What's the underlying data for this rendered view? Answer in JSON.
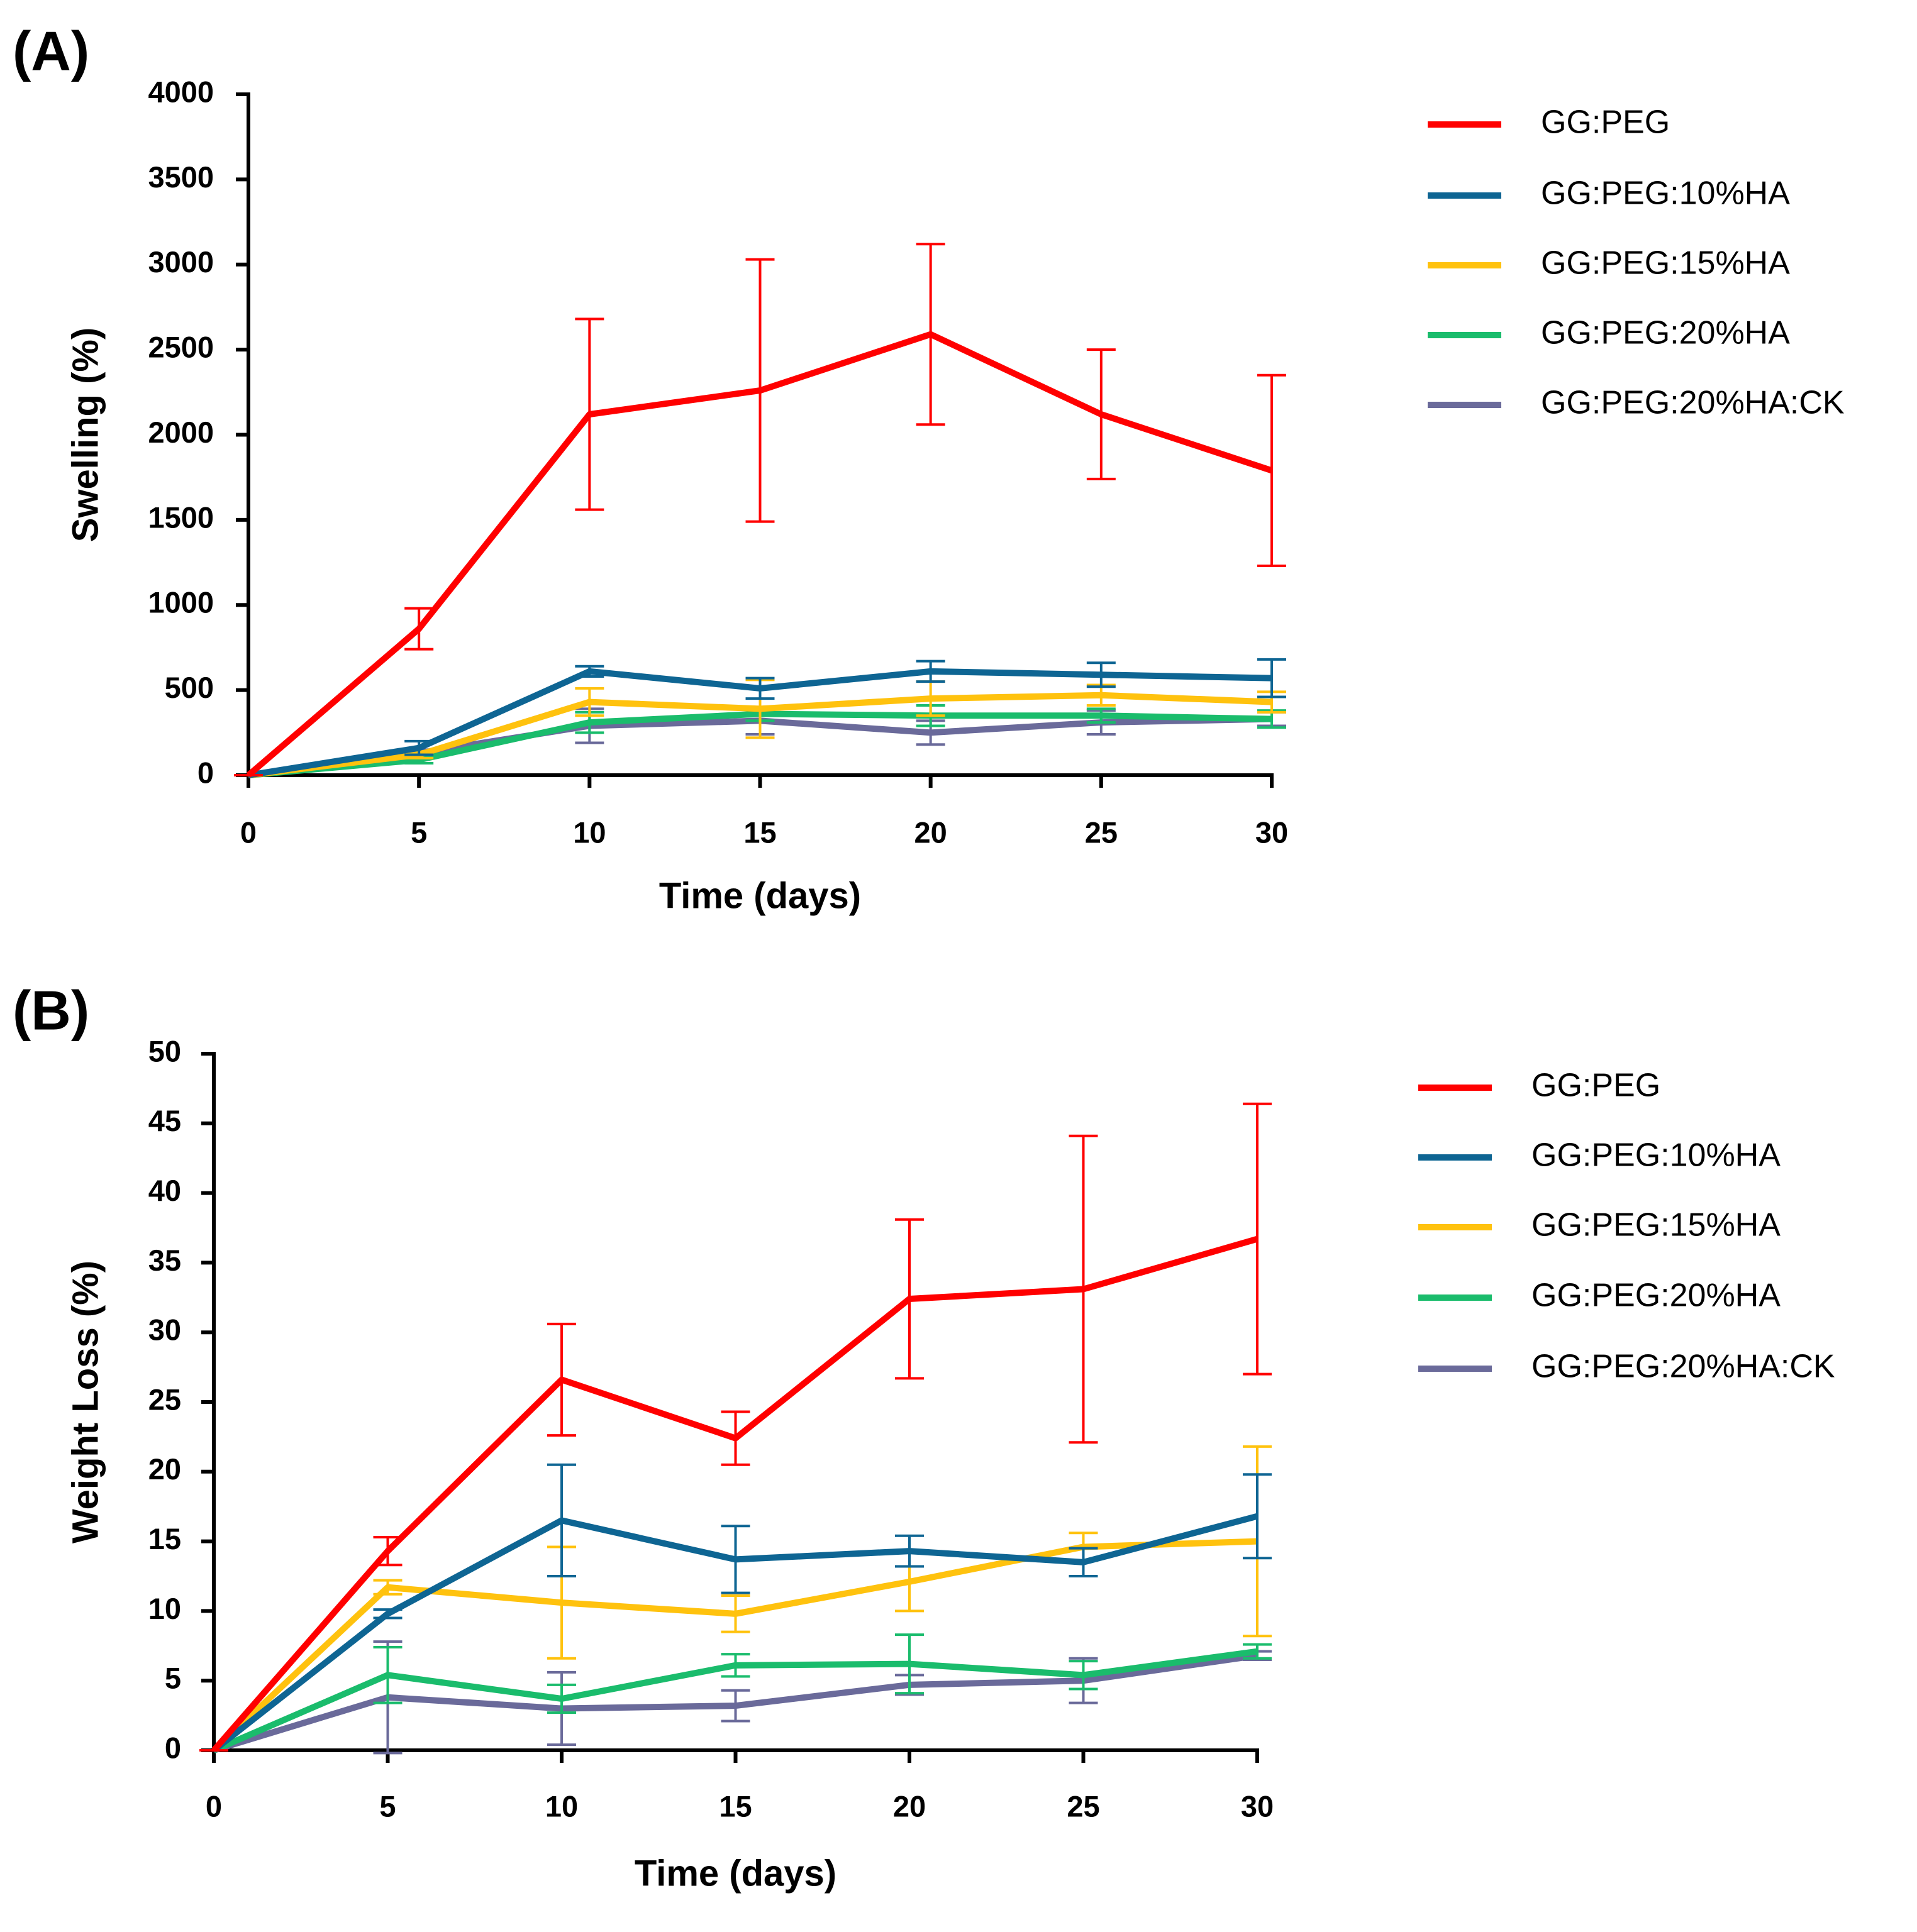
{
  "chart_data": [
    {
      "type": "line",
      "label": "(A)",
      "xlabel": "Time (days)",
      "ylabel": "Swelling (%)",
      "x": [
        0,
        5,
        10,
        15,
        20,
        25,
        30
      ],
      "xlim": [
        0,
        30
      ],
      "xticks": [
        0,
        5,
        10,
        15,
        20,
        25,
        30
      ],
      "ylim": [
        0,
        4000
      ],
      "yticks": [
        0,
        500,
        1000,
        1500,
        2000,
        2500,
        3000,
        3500,
        4000
      ],
      "series": [
        {
          "name": "GG:PEG",
          "color": "#ff0000",
          "values": [
            0,
            860,
            2120,
            2260,
            2590,
            2120,
            1790
          ],
          "errors": [
            0,
            120,
            560,
            770,
            530,
            380,
            560
          ]
        },
        {
          "name": "GG:PEG:10%HA",
          "color": "#0e6593",
          "values": [
            0,
            160,
            610,
            510,
            610,
            590,
            570
          ],
          "errors": [
            0,
            40,
            30,
            60,
            60,
            70,
            110
          ]
        },
        {
          "name": "GG:PEG:15%HA",
          "color": "#ffc20e",
          "values": [
            0,
            120,
            430,
            390,
            450,
            470,
            430
          ],
          "errors": [
            0,
            20,
            80,
            170,
            100,
            60,
            60
          ]
        },
        {
          "name": "GG:PEG:20%HA",
          "color": "#1abc6c",
          "values": [
            0,
            90,
            310,
            360,
            350,
            350,
            330
          ],
          "errors": [
            0,
            20,
            60,
            40,
            60,
            40,
            50
          ]
        },
        {
          "name": "GG:PEG:20%HA:CK",
          "color": "#6a6a9a",
          "values": [
            0,
            130,
            290,
            320,
            250,
            310,
            330
          ],
          "errors": [
            0,
            20,
            100,
            80,
            70,
            70,
            40
          ]
        }
      ]
    },
    {
      "type": "line",
      "label": "(B)",
      "xlabel": "Time (days)",
      "ylabel": "Weight Loss (%)",
      "x": [
        0,
        5,
        10,
        15,
        20,
        25,
        30
      ],
      "xlim": [
        0,
        30
      ],
      "xticks": [
        0,
        5,
        10,
        15,
        20,
        25,
        30
      ],
      "ylim": [
        0,
        50
      ],
      "yticks": [
        0,
        5,
        10,
        15,
        20,
        25,
        30,
        35,
        40,
        45,
        50
      ],
      "series": [
        {
          "name": "GG:PEG",
          "color": "#ff0000",
          "values": [
            0,
            14.3,
            26.6,
            22.4,
            32.4,
            33.1,
            36.7
          ],
          "errors": [
            0,
            1.0,
            4.0,
            1.9,
            5.7,
            11,
            9.7
          ]
        },
        {
          "name": "GG:PEG:10%HA",
          "color": "#0e6593",
          "values": [
            0,
            9.8,
            16.5,
            13.7,
            14.3,
            13.5,
            16.8
          ],
          "errors": [
            0,
            0.3,
            4,
            2.4,
            1.1,
            1.0,
            3.0
          ]
        },
        {
          "name": "GG:PEG:15%HA",
          "color": "#ffc20e",
          "values": [
            0,
            11.7,
            10.6,
            9.8,
            12.1,
            14.6,
            15.0
          ],
          "errors": [
            0,
            0.5,
            4,
            1.3,
            2.1,
            1.0,
            6.8
          ]
        },
        {
          "name": "GG:PEG:20%HA",
          "color": "#1abc6c",
          "values": [
            0,
            5.4,
            3.7,
            6.1,
            6.2,
            5.4,
            7.1
          ],
          "errors": [
            0,
            2,
            1,
            0.8,
            2.1,
            1,
            0.5
          ]
        },
        {
          "name": "GG:PEG:20%HA:CK",
          "color": "#6a6a9a",
          "values": [
            0,
            3.8,
            3.0,
            3.2,
            4.7,
            5.0,
            6.8
          ],
          "errors": [
            0,
            4,
            2.6,
            1.1,
            0.7,
            1.6,
            0.3
          ]
        }
      ]
    }
  ]
}
